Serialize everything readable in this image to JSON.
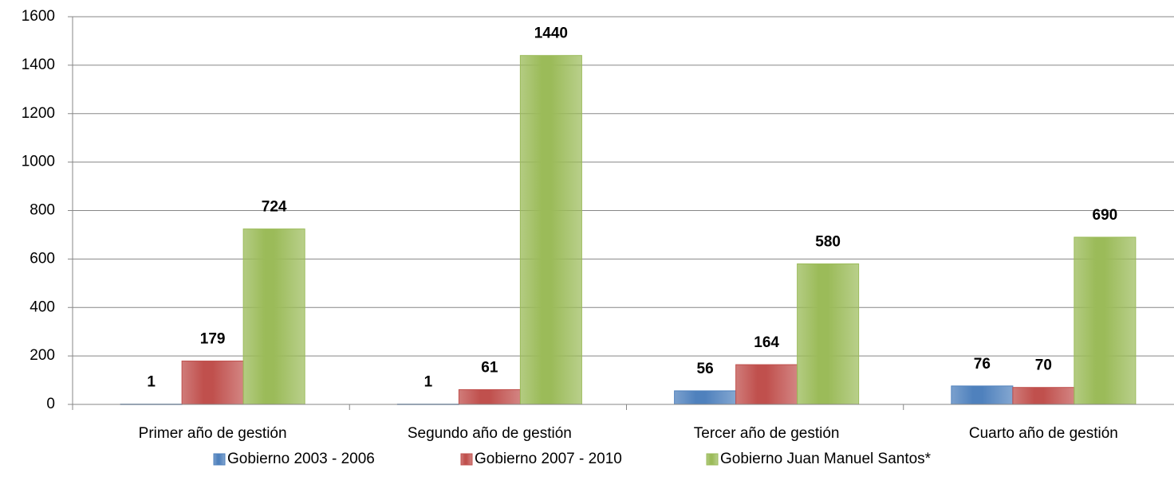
{
  "chart_data": {
    "type": "bar",
    "categories": [
      "Primer año de gestión",
      "Segundo año de gestión",
      "Tercer año de gestión",
      "Cuarto año de gestión"
    ],
    "series": [
      {
        "name": "Gobierno 2003 - 2006",
        "color": "#4f81bd",
        "values": [
          1,
          1,
          56,
          76
        ]
      },
      {
        "name": "Gobierno 2007 - 2010",
        "color": "#c0504d",
        "values": [
          179,
          61,
          164,
          70
        ]
      },
      {
        "name": "Gobierno Juan Manuel Santos*",
        "color": "#9bbb59",
        "values": [
          724,
          1440,
          580,
          690
        ]
      }
    ],
    "ylim": [
      0,
      1600
    ],
    "yticks": [
      0,
      200,
      400,
      600,
      800,
      1000,
      1200,
      1400,
      1600
    ],
    "grid": true,
    "legend": "bottom"
  }
}
